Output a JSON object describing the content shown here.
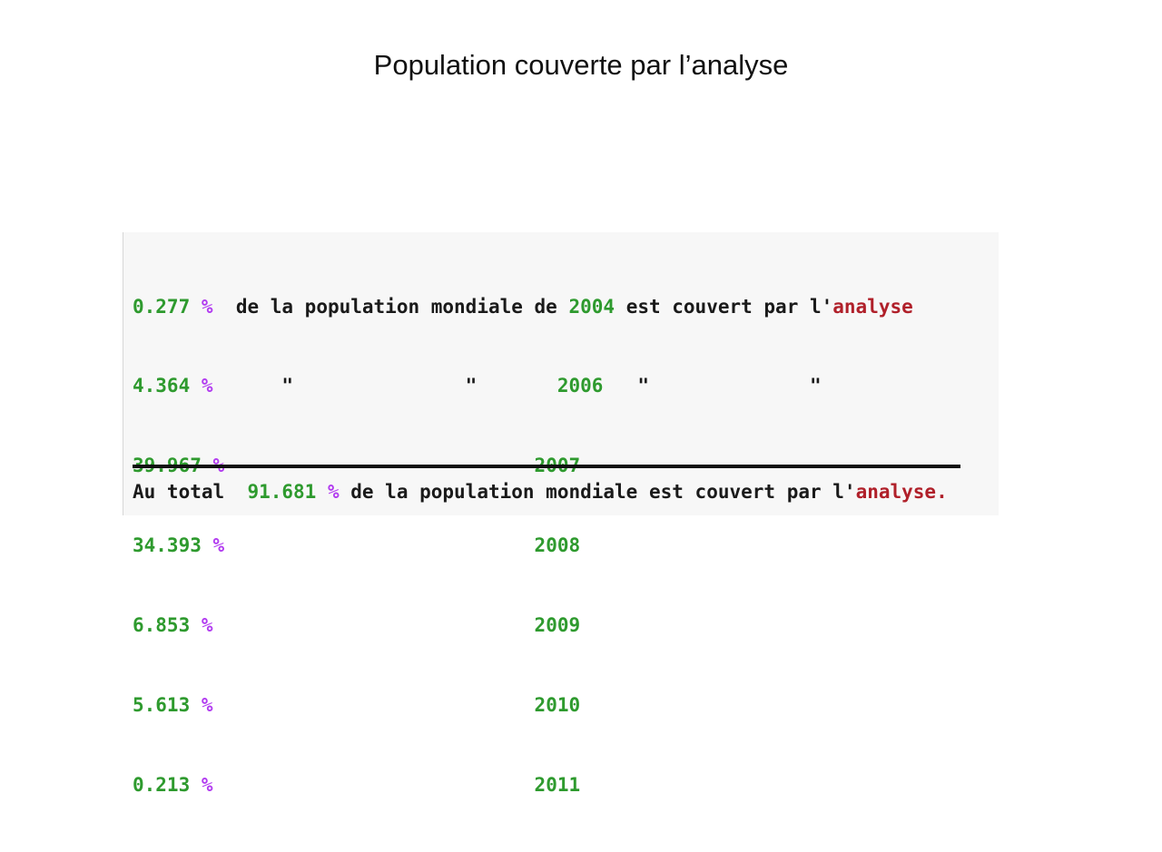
{
  "slide": {
    "title": "Population couverte par l’analyse"
  },
  "output": {
    "lines": [
      {
        "pct": "0.277",
        "pct_sym": "%",
        "mid": "  de la population mondiale de ",
        "year": "2004",
        "tail": " est couvert par l'",
        "tail_red": "analyse"
      },
      {
        "pct": "4.364",
        "pct_sym": "%",
        "mid": "      \"               \"       ",
        "year": "2006",
        "tail": "   \"              \"",
        "tail_red": ""
      },
      {
        "pct": "39.967",
        "pct_sym": "%",
        "mid": "                           ",
        "year": "2007",
        "tail": "",
        "tail_red": ""
      },
      {
        "pct": "34.393",
        "pct_sym": "%",
        "mid": "                           ",
        "year": "2008",
        "tail": "",
        "tail_red": ""
      },
      {
        "pct": "6.853",
        "pct_sym": "%",
        "mid": "                            ",
        "year": "2009",
        "tail": "",
        "tail_red": ""
      },
      {
        "pct": "5.613",
        "pct_sym": "%",
        "mid": "                            ",
        "year": "2010",
        "tail": "",
        "tail_red": ""
      },
      {
        "pct": "0.213",
        "pct_sym": "%",
        "mid": "                            ",
        "year": "2011",
        "tail": "",
        "tail_red": ""
      }
    ],
    "total": {
      "prefix": "Au total  ",
      "value": "91.681",
      "pct_sym": "%",
      "middle": " de la population mondiale est couvert par l'",
      "red": "analyse."
    }
  },
  "colors": {
    "number_green": "#2e9a2e",
    "percent_purple": "#b23cf0",
    "keyword_red": "#b0202a",
    "panel_bg": "#f7f7f7"
  }
}
